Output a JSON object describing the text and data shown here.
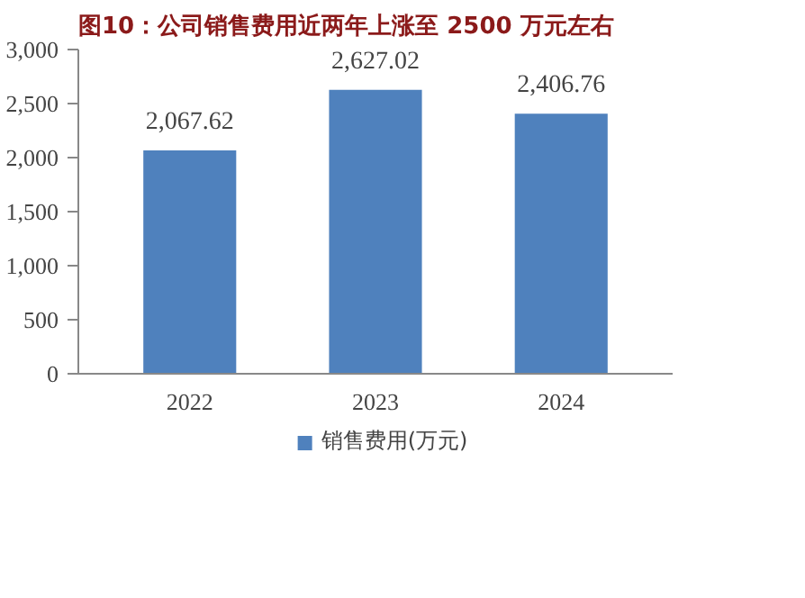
{
  "chart_data": {
    "type": "bar",
    "title": "图10：公司销售费用近两年上涨至 2500 万元左右",
    "categories": [
      "2022",
      "2023",
      "2024"
    ],
    "series": [
      {
        "name": "销售费用(万元)",
        "color": "#4f81bd",
        "values": [
          2067.62,
          2627.02,
          2406.76
        ],
        "value_labels": [
          "2,067.62",
          "2,627.02",
          "2,406.76"
        ]
      }
    ],
    "ylim": [
      0,
      3000
    ],
    "yticks": [
      0,
      {
        "value": 500,
        "label": "500"
      },
      {
        "value": 1000,
        "label": "1,000"
      },
      {
        "value": 1500,
        "label": "1,500"
      },
      {
        "value": 2000,
        "label": "2,000"
      },
      {
        "value": 2500,
        "label": "2,500"
      },
      {
        "value": 3000,
        "label": "3,000"
      }
    ],
    "grid": false,
    "legend": "bottom"
  }
}
